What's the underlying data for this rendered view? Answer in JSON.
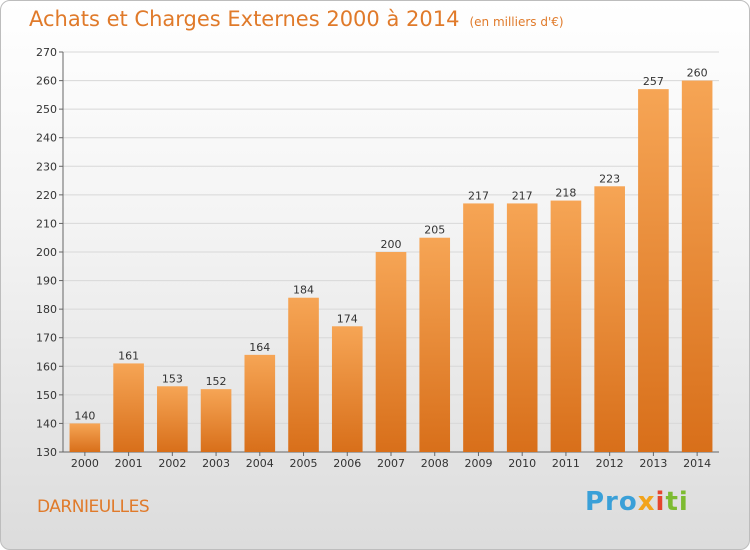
{
  "header": {
    "title": "Achats et Charges Externes 2000 à 2014",
    "unit": "(en milliers d'€)"
  },
  "footer": {
    "city": "DARNIEULLES",
    "logo_text": "Proxiti",
    "logo_parts": [
      "Pro",
      "x",
      "i",
      "ti"
    ]
  },
  "colors": {
    "bar_top": "#f6a555",
    "bar_bottom": "#d86f1a",
    "title": "#e07a2a"
  },
  "chart_data": {
    "type": "bar",
    "title": "Achats et Charges Externes 2000 à 2014",
    "xlabel": "",
    "ylabel": "",
    "categories": [
      "2000",
      "2001",
      "2002",
      "2003",
      "2004",
      "2005",
      "2006",
      "2007",
      "2008",
      "2009",
      "2010",
      "2011",
      "2012",
      "2013",
      "2014"
    ],
    "values": [
      140,
      161,
      153,
      152,
      164,
      184,
      174,
      200,
      205,
      217,
      217,
      218,
      223,
      257,
      260
    ],
    "ylim": [
      130,
      270
    ],
    "yticks": [
      130,
      140,
      150,
      160,
      170,
      180,
      190,
      200,
      210,
      220,
      230,
      240,
      250,
      260,
      270
    ],
    "grid": true,
    "data_labels": true
  }
}
